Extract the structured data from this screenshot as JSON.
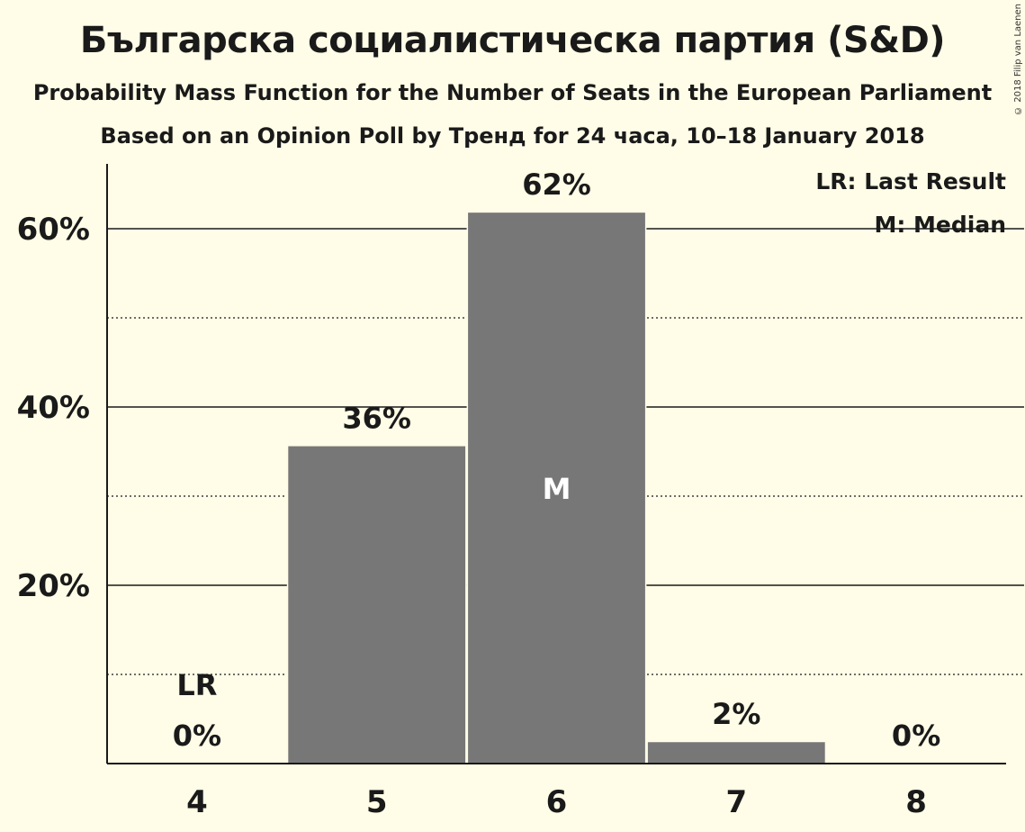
{
  "title": "Българска социалистическа партия (S&D)",
  "subtitle": "Probability Mass Function for the Number of Seats in the European Parliament",
  "subtitle2": "Based on an Opinion Poll by Тренд for 24 часа, 10–18 January 2018",
  "copyright": "© 2018 Filip van Laenen",
  "legend": {
    "last_result": "LR: Last Result",
    "median": "M: Median"
  },
  "colors": {
    "background": "#fffde7",
    "bar": "#777777",
    "axis": "#1a1a1a"
  },
  "chart_data": {
    "type": "bar",
    "title": "Българска социалистическа партия (S&D)",
    "xlabel": "",
    "ylabel": "",
    "categories": [
      "4",
      "5",
      "6",
      "7",
      "8"
    ],
    "values": [
      0,
      35.6,
      61.8,
      2.4,
      0
    ],
    "value_labels": [
      "0%",
      "36%",
      "62%",
      "2%",
      "0%"
    ],
    "ylim": [
      0,
      67
    ],
    "yticks": [
      20,
      40,
      60
    ],
    "ytick_labels": [
      "20%",
      "40%",
      "60%"
    ],
    "minor_gridlines": [
      10,
      30,
      50
    ],
    "last_result_category": "4",
    "last_result_marker": "LR",
    "median_category": "6",
    "median_marker": "M",
    "legend_position": "top-right"
  }
}
